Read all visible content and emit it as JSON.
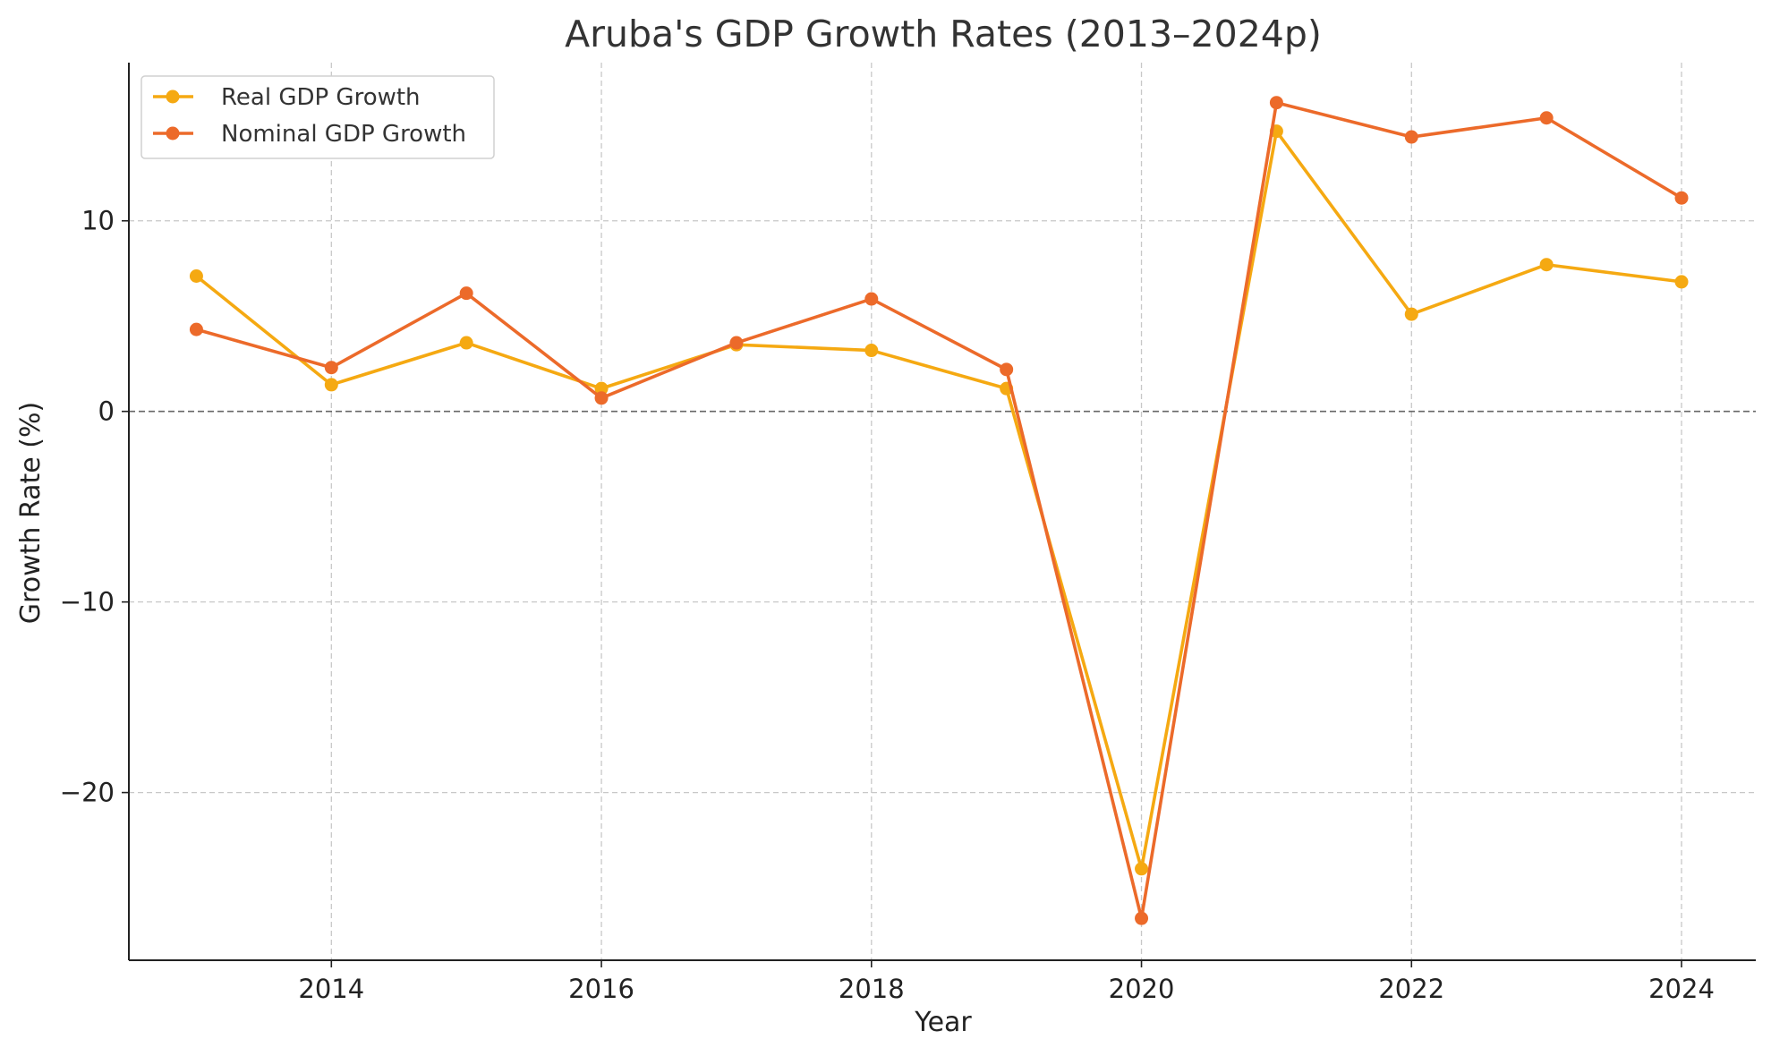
{
  "chart_data": {
    "type": "line",
    "title": "Aruba's GDP Growth Rates (2013–2024p)",
    "xlabel": "Year",
    "ylabel": "Growth Rate (%)",
    "x": [
      2013,
      2014,
      2015,
      2016,
      2017,
      2018,
      2019,
      2020,
      2021,
      2022,
      2023,
      2024
    ],
    "xlim": [
      2012.5,
      2024.55
    ],
    "ylim": [
      -28.8,
      18.3
    ],
    "x_ticks": [
      2014,
      2016,
      2018,
      2020,
      2022,
      2024
    ],
    "y_ticks": [
      -20,
      -10,
      0,
      10
    ],
    "y_tick_labels": [
      "−20",
      "−10",
      "0",
      "10"
    ],
    "grid": true,
    "zero_line": true,
    "legend_position": "top-left",
    "series": [
      {
        "name": "Real GDP Growth",
        "color": "#F5A912",
        "values": [
          7.1,
          1.4,
          3.6,
          1.2,
          3.5,
          3.2,
          1.2,
          -24.0,
          14.7,
          5.1,
          7.7,
          6.8
        ]
      },
      {
        "name": "Nominal GDP Growth",
        "color": "#EC6A2A",
        "values": [
          4.3,
          2.3,
          6.2,
          0.7,
          3.6,
          5.9,
          2.2,
          -26.6,
          16.2,
          14.4,
          15.4,
          11.2
        ]
      }
    ]
  }
}
